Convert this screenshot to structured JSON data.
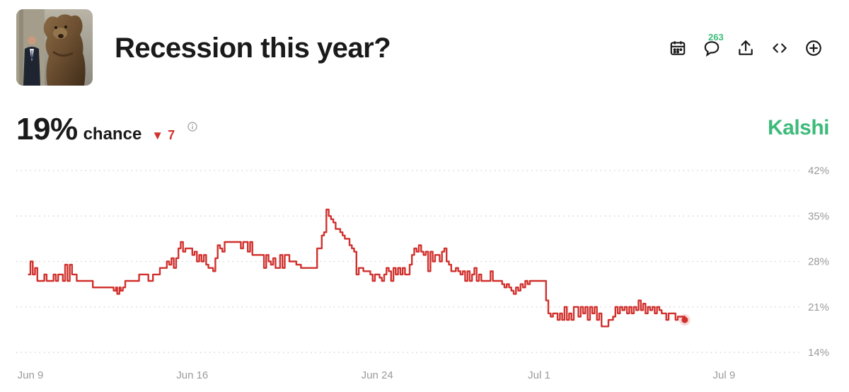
{
  "header": {
    "title": "Recession this year?",
    "thumbnail": "photo of bull/bear statue",
    "toolbar": {
      "calendar_icon": "calendar-icon",
      "comments_icon": "comment-icon",
      "comments_count": "263",
      "share_icon": "share-icon",
      "embed_icon": "embed-code-icon",
      "add_icon": "add-circle-icon"
    }
  },
  "summary": {
    "percent": "19%",
    "chance_label": "chance",
    "delta_symbol": "▼",
    "delta_value": "7",
    "brand": "Kalshi"
  },
  "colors": {
    "line": "#d0312d",
    "brand": "#3dbb7a",
    "grid": "#cfcfcf",
    "tick": "#9a9a9a"
  },
  "chart_data": {
    "type": "line",
    "title": "",
    "xlabel": "",
    "ylabel": "",
    "ylim": [
      14,
      42
    ],
    "yticks": [
      {
        "value": 42,
        "label": "42%"
      },
      {
        "value": 35,
        "label": "35%"
      },
      {
        "value": 28,
        "label": "28%"
      },
      {
        "value": 21,
        "label": "21%"
      },
      {
        "value": 14,
        "label": "14%"
      }
    ],
    "xlim": [
      0,
      30.5
    ],
    "xticks": [
      {
        "value": 0,
        "label": "Jun 9"
      },
      {
        "value": 7,
        "label": "Jun 16"
      },
      {
        "value": 15,
        "label": "Jun 24"
      },
      {
        "value": 22,
        "label": "Jul 1"
      },
      {
        "value": 30,
        "label": "Jul 9"
      }
    ],
    "grid": true,
    "x_unit": "days since Jun 9",
    "series": [
      {
        "name": "",
        "values": [
          [
            -0.1,
            26
          ],
          [
            0.0,
            28
          ],
          [
            0.1,
            26
          ],
          [
            0.2,
            27
          ],
          [
            0.3,
            25
          ],
          [
            0.5,
            25
          ],
          [
            0.6,
            26
          ],
          [
            0.7,
            25
          ],
          [
            0.9,
            25
          ],
          [
            1.0,
            26
          ],
          [
            1.1,
            25
          ],
          [
            1.2,
            26
          ],
          [
            1.3,
            26
          ],
          [
            1.4,
            25
          ],
          [
            1.5,
            27.5
          ],
          [
            1.6,
            25
          ],
          [
            1.7,
            27.5
          ],
          [
            1.8,
            26
          ],
          [
            2.0,
            25
          ],
          [
            2.3,
            25
          ],
          [
            2.6,
            25
          ],
          [
            2.7,
            24
          ],
          [
            3.0,
            24
          ],
          [
            3.3,
            24
          ],
          [
            3.5,
            24
          ],
          [
            3.6,
            23.5
          ],
          [
            3.7,
            24
          ],
          [
            3.75,
            23
          ],
          [
            3.85,
            24
          ],
          [
            3.9,
            23.5
          ],
          [
            4.0,
            24
          ],
          [
            4.1,
            25
          ],
          [
            4.3,
            25
          ],
          [
            4.6,
            25
          ],
          [
            4.7,
            26
          ],
          [
            4.9,
            26
          ],
          [
            5.0,
            26
          ],
          [
            5.1,
            25
          ],
          [
            5.3,
            26
          ],
          [
            5.5,
            26
          ],
          [
            5.6,
            27
          ],
          [
            5.7,
            27
          ],
          [
            5.8,
            27
          ],
          [
            5.9,
            28
          ],
          [
            6.0,
            27.5
          ],
          [
            6.1,
            28.5
          ],
          [
            6.2,
            27
          ],
          [
            6.3,
            28.5
          ],
          [
            6.4,
            30
          ],
          [
            6.5,
            31
          ],
          [
            6.6,
            29.5
          ],
          [
            6.7,
            30
          ],
          [
            6.9,
            30
          ],
          [
            7.0,
            29
          ],
          [
            7.1,
            29.5
          ],
          [
            7.2,
            28
          ],
          [
            7.3,
            29
          ],
          [
            7.4,
            28
          ],
          [
            7.5,
            29
          ],
          [
            7.6,
            27.5
          ],
          [
            7.7,
            27
          ],
          [
            7.8,
            27
          ],
          [
            7.9,
            26.5
          ],
          [
            8.0,
            28.5
          ],
          [
            8.1,
            30.5
          ],
          [
            8.2,
            30
          ],
          [
            8.3,
            29.5
          ],
          [
            8.4,
            31
          ],
          [
            8.5,
            31
          ],
          [
            8.6,
            31
          ],
          [
            8.8,
            31
          ],
          [
            9.0,
            31
          ],
          [
            9.1,
            30
          ],
          [
            9.2,
            31
          ],
          [
            9.3,
            31
          ],
          [
            9.4,
            29.5
          ],
          [
            9.5,
            31
          ],
          [
            9.6,
            29
          ],
          [
            9.7,
            29
          ],
          [
            9.9,
            29
          ],
          [
            10.0,
            29
          ],
          [
            10.1,
            27
          ],
          [
            10.2,
            29
          ],
          [
            10.3,
            28
          ],
          [
            10.4,
            27.5
          ],
          [
            10.5,
            28.5
          ],
          [
            10.6,
            27
          ],
          [
            10.7,
            27
          ],
          [
            10.8,
            29
          ],
          [
            10.9,
            27
          ],
          [
            11.0,
            29
          ],
          [
            11.1,
            29
          ],
          [
            11.2,
            28
          ],
          [
            11.3,
            28
          ],
          [
            11.4,
            28
          ],
          [
            11.5,
            27.5
          ],
          [
            11.7,
            27
          ],
          [
            11.9,
            27
          ],
          [
            12.2,
            27
          ],
          [
            12.4,
            30
          ],
          [
            12.6,
            32
          ],
          [
            12.7,
            32.5
          ],
          [
            12.8,
            36
          ],
          [
            12.9,
            35
          ],
          [
            13.0,
            34.5
          ],
          [
            13.1,
            34
          ],
          [
            13.2,
            33
          ],
          [
            13.3,
            33
          ],
          [
            13.4,
            32.5
          ],
          [
            13.5,
            32
          ],
          [
            13.6,
            31.5
          ],
          [
            13.7,
            31.5
          ],
          [
            13.8,
            30.5
          ],
          [
            13.9,
            30
          ],
          [
            14.0,
            29.5
          ],
          [
            14.1,
            26
          ],
          [
            14.2,
            27
          ],
          [
            14.4,
            26.5
          ],
          [
            14.6,
            26.5
          ],
          [
            14.7,
            26
          ],
          [
            14.8,
            25
          ],
          [
            14.9,
            26
          ],
          [
            15.0,
            26
          ],
          [
            15.1,
            25.5
          ],
          [
            15.2,
            25
          ],
          [
            15.3,
            26
          ],
          [
            15.4,
            27
          ],
          [
            15.5,
            26.5
          ],
          [
            15.6,
            25
          ],
          [
            15.7,
            27
          ],
          [
            15.8,
            26
          ],
          [
            15.9,
            27
          ],
          [
            16.0,
            26
          ],
          [
            16.1,
            27
          ],
          [
            16.2,
            26
          ],
          [
            16.3,
            26
          ],
          [
            16.4,
            27.5
          ],
          [
            16.5,
            29
          ],
          [
            16.6,
            30
          ],
          [
            16.7,
            29.5
          ],
          [
            16.8,
            30.5
          ],
          [
            16.9,
            29.5
          ],
          [
            17.0,
            29
          ],
          [
            17.1,
            29.5
          ],
          [
            17.2,
            26.5
          ],
          [
            17.3,
            29.5
          ],
          [
            17.4,
            28
          ],
          [
            17.5,
            29
          ],
          [
            17.6,
            29
          ],
          [
            17.7,
            28
          ],
          [
            17.8,
            29.5
          ],
          [
            17.9,
            30
          ],
          [
            18.0,
            28
          ],
          [
            18.1,
            27.5
          ],
          [
            18.2,
            26.5
          ],
          [
            18.3,
            26.5
          ],
          [
            18.4,
            27
          ],
          [
            18.5,
            26.5
          ],
          [
            18.6,
            26
          ],
          [
            18.7,
            26.5
          ],
          [
            18.8,
            25
          ],
          [
            18.9,
            26.5
          ],
          [
            19.0,
            25
          ],
          [
            19.1,
            26
          ],
          [
            19.2,
            27
          ],
          [
            19.3,
            25
          ],
          [
            19.4,
            26
          ],
          [
            19.5,
            25
          ],
          [
            19.6,
            25
          ],
          [
            19.8,
            25
          ],
          [
            19.9,
            26.5
          ],
          [
            20.0,
            25
          ],
          [
            20.1,
            25
          ],
          [
            20.2,
            25
          ],
          [
            20.3,
            25
          ],
          [
            20.4,
            24.5
          ],
          [
            20.5,
            24
          ],
          [
            20.6,
            24.5
          ],
          [
            20.7,
            24
          ],
          [
            20.8,
            23.5
          ],
          [
            20.9,
            23
          ],
          [
            21.0,
            24
          ],
          [
            21.1,
            23.5
          ],
          [
            21.2,
            24.5
          ],
          [
            21.3,
            24
          ],
          [
            21.4,
            25
          ],
          [
            21.5,
            24.5
          ],
          [
            21.6,
            25
          ],
          [
            21.8,
            25
          ],
          [
            22.0,
            25
          ],
          [
            22.2,
            25
          ],
          [
            22.3,
            22
          ],
          [
            22.4,
            20
          ],
          [
            22.5,
            19.5
          ],
          [
            22.6,
            20
          ],
          [
            22.7,
            20
          ],
          [
            22.8,
            19
          ],
          [
            22.9,
            20
          ],
          [
            23.0,
            19
          ],
          [
            23.1,
            21
          ],
          [
            23.2,
            19
          ],
          [
            23.3,
            20
          ],
          [
            23.4,
            19
          ],
          [
            23.5,
            21
          ],
          [
            23.6,
            21
          ],
          [
            23.7,
            19.5
          ],
          [
            23.8,
            21
          ],
          [
            23.9,
            20
          ],
          [
            24.0,
            21
          ],
          [
            24.1,
            19
          ],
          [
            24.2,
            21
          ],
          [
            24.3,
            20
          ],
          [
            24.4,
            21
          ],
          [
            24.5,
            19
          ],
          [
            24.6,
            20
          ],
          [
            24.7,
            18
          ],
          [
            24.8,
            18
          ],
          [
            24.9,
            18
          ],
          [
            25.0,
            19
          ],
          [
            25.1,
            19
          ],
          [
            25.2,
            19.5
          ],
          [
            25.3,
            21
          ],
          [
            25.4,
            20
          ],
          [
            25.5,
            21
          ],
          [
            25.6,
            20.5
          ],
          [
            25.7,
            21
          ],
          [
            25.8,
            20
          ],
          [
            25.9,
            21
          ],
          [
            26.0,
            20
          ],
          [
            26.1,
            21
          ],
          [
            26.2,
            20.5
          ],
          [
            26.3,
            22
          ],
          [
            26.4,
            20.5
          ],
          [
            26.5,
            21.5
          ],
          [
            26.6,
            20
          ],
          [
            26.7,
            21
          ],
          [
            26.8,
            20.5
          ],
          [
            26.9,
            21
          ],
          [
            27.0,
            20
          ],
          [
            27.1,
            21
          ],
          [
            27.2,
            20.5
          ],
          [
            27.3,
            20
          ],
          [
            27.4,
            20
          ],
          [
            27.5,
            19
          ],
          [
            27.6,
            20
          ],
          [
            27.8,
            20
          ],
          [
            27.9,
            19
          ],
          [
            28.0,
            19.5
          ],
          [
            28.2,
            19.5
          ],
          [
            28.3,
            19
          ]
        ]
      }
    ]
  }
}
